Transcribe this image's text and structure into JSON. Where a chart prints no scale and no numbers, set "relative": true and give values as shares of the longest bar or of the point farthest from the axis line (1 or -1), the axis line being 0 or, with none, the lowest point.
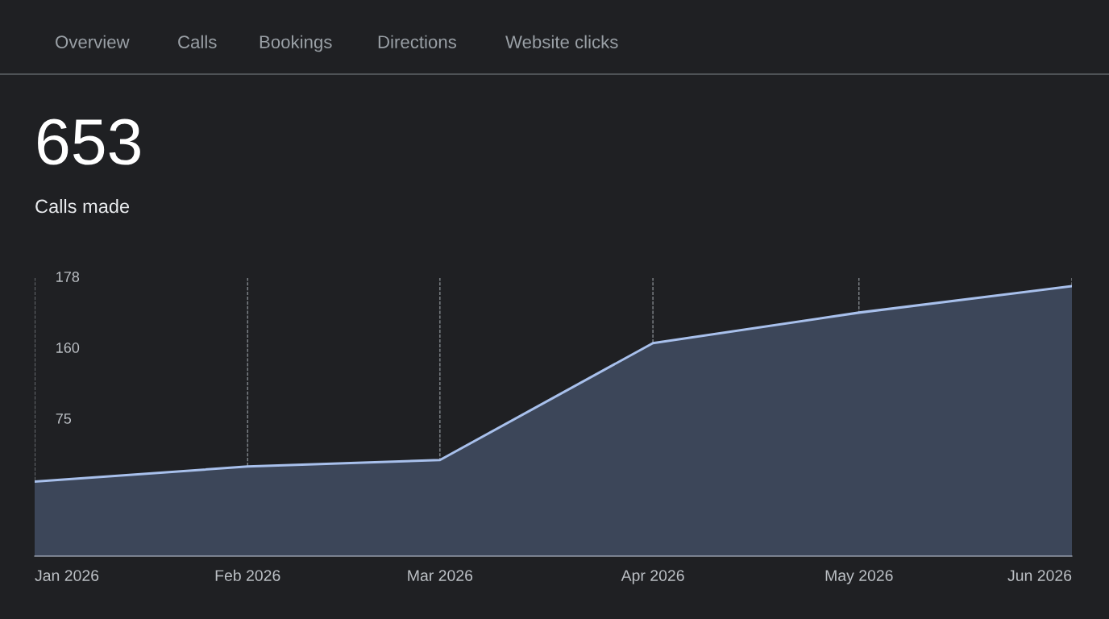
{
  "chart_data": {
    "type": "area",
    "title": "653",
    "subtitle": "Calls made",
    "annotations": [
      "Overview",
      "Calls",
      "Bookings",
      "Directions",
      "Website clicks",
      "178",
      "160",
      "75"
    ],
    "x": [
      "2026-01",
      "2026-02",
      "2026-03",
      "2026-04",
      "2026-05",
      "2026-06"
    ],
    "series": [
      {
        "color": "#a8c0ec",
        "values": [
          0.276,
          0.332,
          0.356,
          0.789,
          0.902,
          1.0
        ]
      }
    ],
    "relative": true,
    "xlim": [
      "2026-01",
      "2026-06"
    ],
    "xticks": [
      {
        "value": "2026-01",
        "label": "Jan 2026"
      },
      {
        "value": "2026-02",
        "label": "Feb 2026"
      },
      {
        "value": "2026-03",
        "label": "Mar 2026"
      },
      {
        "value": "2026-04",
        "label": "Apr 2026"
      },
      {
        "value": "2026-05",
        "label": "May 2026"
      },
      {
        "value": "2026-06",
        "label": "Jun 2026"
      }
    ],
    "grid": "x",
    "line_style": "solid",
    "marker": "none"
  }
}
